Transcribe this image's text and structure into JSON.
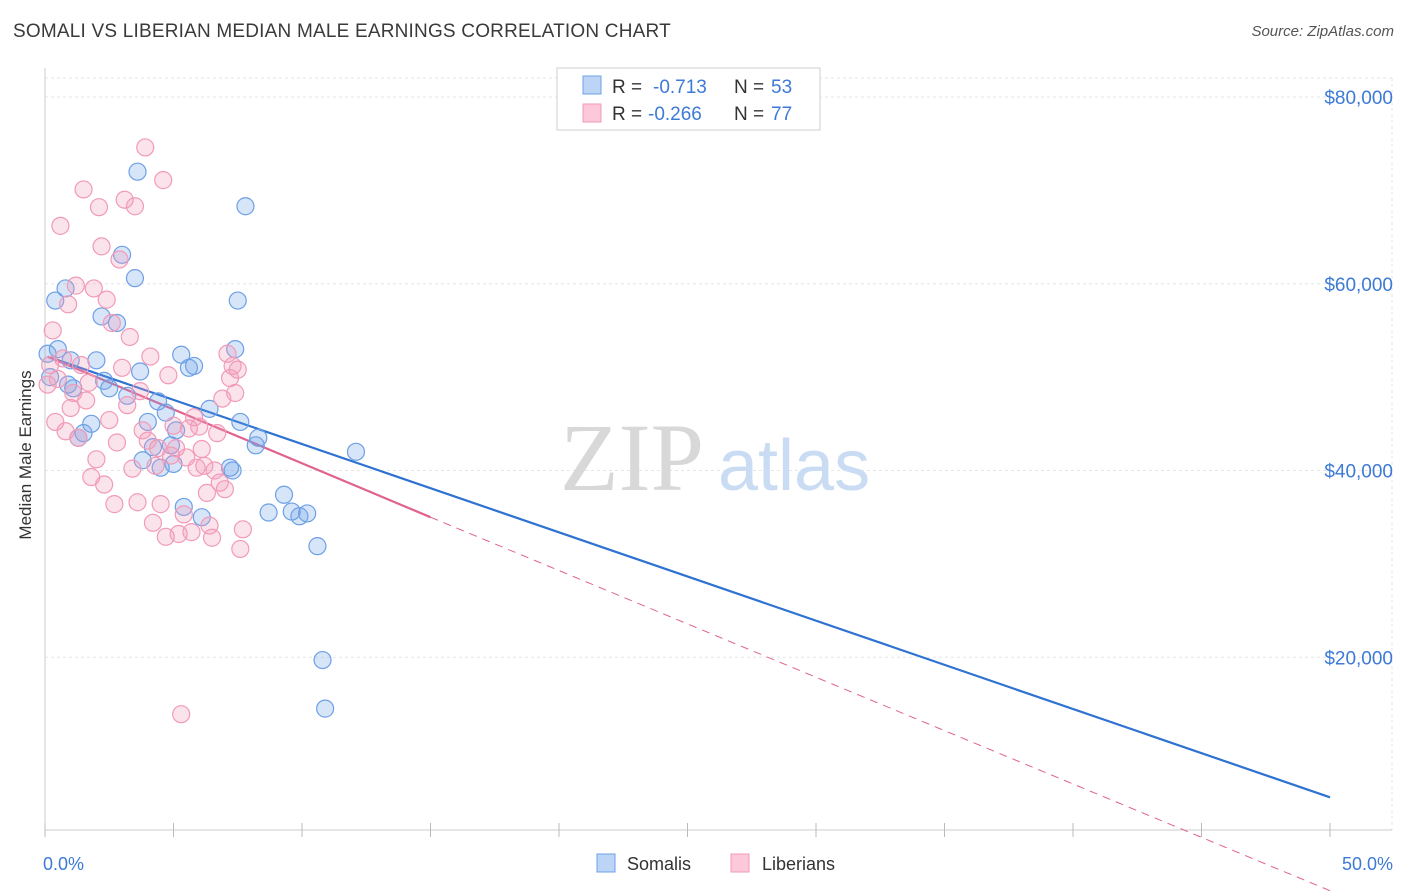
{
  "title": "SOMALI VS LIBERIAN MEDIAN MALE EARNINGS CORRELATION CHART",
  "source": "Source: ZipAtlas.com",
  "watermark": {
    "zip": "ZIP",
    "atlas": "atlas"
  },
  "legend_top": [
    {
      "r_label": "R =",
      "r_value": "-0.713",
      "n_label": "N =",
      "n_value": "53"
    },
    {
      "r_label": "R =",
      "r_value": "-0.266",
      "n_label": "N =",
      "n_value": "77"
    }
  ],
  "legend_bottom": [
    "Somalis",
    "Liberians"
  ],
  "chart_data": {
    "type": "scatter",
    "xlabel": "",
    "ylabel": "Median Male Earnings",
    "xlim": [
      0,
      0.5
    ],
    "ylim": [
      0,
      82000
    ],
    "x_tick_labels": [
      "0.0%",
      "50.0%"
    ],
    "y_ticks": [
      20000,
      40000,
      60000,
      80000
    ],
    "y_tick_labels": [
      "$20,000",
      "$40,000",
      "$60,000",
      "$80,000"
    ],
    "colors": {
      "somalis": "#6ea0e6",
      "liberians": "#f29ab8",
      "somalis_line": "#2e72d2",
      "liberians_line": "#e0628f",
      "axis_text": "#3d7ad6"
    },
    "series": [
      {
        "name": "Somalis",
        "x": [
          0.001,
          0.002,
          0.004,
          0.005,
          0.008,
          0.009,
          0.01,
          0.011,
          0.013,
          0.015,
          0.018,
          0.02,
          0.022,
          0.023,
          0.025,
          0.028,
          0.03,
          0.032,
          0.035,
          0.036,
          0.037,
          0.038,
          0.04,
          0.042,
          0.044,
          0.045,
          0.047,
          0.049,
          0.05,
          0.051,
          0.053,
          0.054,
          0.056,
          0.058,
          0.061,
          0.064,
          0.072,
          0.073,
          0.074,
          0.075,
          0.076,
          0.078,
          0.082,
          0.083,
          0.087,
          0.093,
          0.096,
          0.099,
          0.102,
          0.106,
          0.108,
          0.109,
          0.121
        ],
        "y": [
          52500,
          50000,
          58200,
          53000,
          59500,
          49200,
          51800,
          48800,
          43500,
          44000,
          45000,
          51800,
          56500,
          49600,
          48800,
          55800,
          63100,
          48000,
          60600,
          72000,
          50600,
          41100,
          45200,
          42500,
          47400,
          40300,
          46200,
          42700,
          40700,
          44300,
          52400,
          36100,
          51000,
          51200,
          35000,
          46600,
          40300,
          40000,
          53000,
          58200,
          45200,
          68300,
          42700,
          43500,
          35500,
          37400,
          35600,
          35100,
          35400,
          31900,
          19700,
          14500,
          42000
        ]
      },
      {
        "name": "Liberians",
        "x": [
          0.001,
          0.002,
          0.003,
          0.004,
          0.005,
          0.006,
          0.007,
          0.008,
          0.009,
          0.01,
          0.011,
          0.012,
          0.013,
          0.014,
          0.015,
          0.016,
          0.017,
          0.018,
          0.019,
          0.02,
          0.021,
          0.022,
          0.023,
          0.024,
          0.025,
          0.026,
          0.027,
          0.028,
          0.029,
          0.03,
          0.031,
          0.032,
          0.033,
          0.034,
          0.035,
          0.036,
          0.037,
          0.038,
          0.039,
          0.04,
          0.041,
          0.042,
          0.043,
          0.044,
          0.045,
          0.046,
          0.047,
          0.048,
          0.049,
          0.05,
          0.051,
          0.052,
          0.053,
          0.054,
          0.055,
          0.056,
          0.057,
          0.058,
          0.059,
          0.06,
          0.061,
          0.062,
          0.063,
          0.064,
          0.065,
          0.066,
          0.067,
          0.068,
          0.069,
          0.07,
          0.071,
          0.072,
          0.073,
          0.074,
          0.075,
          0.076,
          0.077
        ],
        "y": [
          49200,
          51300,
          55000,
          45200,
          49800,
          66200,
          52000,
          44200,
          57800,
          46700,
          48300,
          59800,
          43500,
          51300,
          70100,
          47500,
          49400,
          39300,
          59500,
          41200,
          68200,
          64000,
          38500,
          58300,
          45400,
          55800,
          36400,
          43000,
          62600,
          51000,
          69000,
          47000,
          54300,
          40200,
          68300,
          36600,
          48500,
          44300,
          74600,
          43200,
          52200,
          34400,
          40500,
          42400,
          36400,
          71100,
          32900,
          50200,
          41600,
          44800,
          42400,
          33200,
          13900,
          35300,
          41400,
          44500,
          33400,
          45700,
          40300,
          44700,
          42300,
          40500,
          37600,
          34100,
          32800,
          40000,
          44000,
          38700,
          47700,
          38000,
          52500,
          49900,
          51200,
          48300,
          50800,
          31600,
          33700
        ]
      }
    ],
    "trend_lines": [
      {
        "name": "Somalis",
        "x": [
          0.001,
          0.5
        ],
        "y": [
          52200,
          5000
        ],
        "style": "solid"
      },
      {
        "name": "Liberians",
        "x": [
          0.001,
          0.15
        ],
        "y": [
          52200,
          35000
        ],
        "style": "solid"
      },
      {
        "name": "Liberians",
        "x": [
          0.15,
          0.5
        ],
        "y": [
          35000,
          -5000
        ],
        "style": "dashed"
      }
    ]
  }
}
